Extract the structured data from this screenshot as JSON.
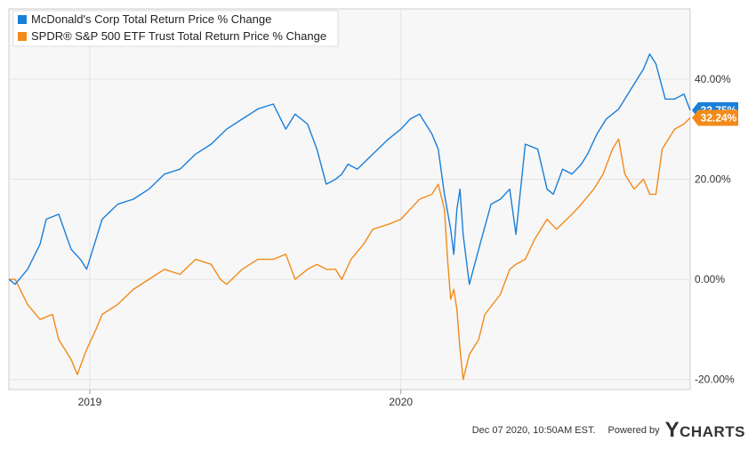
{
  "chart_data": {
    "type": "line",
    "ylim": [
      -22,
      54
    ],
    "x_ticks": [
      {
        "label": "2019",
        "x": 2019.0
      },
      {
        "label": "2020",
        "x": 2020.0
      }
    ],
    "y_ticks": [
      {
        "label": "40.00%",
        "value": 40
      },
      {
        "label": "20.00%",
        "value": 20
      },
      {
        "label": "0.00%",
        "value": 0
      },
      {
        "label": "-20.00%",
        "value": -20
      }
    ],
    "grid": true,
    "legend_placement": "top-left",
    "series": [
      {
        "name": "McDonald's Corp Total Return Price % Change",
        "color": "#1a7fd9",
        "end_label": "33.75%",
        "x": [
          2018.74,
          2018.76,
          2018.8,
          2018.84,
          2018.86,
          2018.9,
          2018.94,
          2018.97,
          2018.99,
          2019.04,
          2019.09,
          2019.14,
          2019.19,
          2019.24,
          2019.29,
          2019.34,
          2019.39,
          2019.44,
          2019.49,
          2019.54,
          2019.59,
          2019.63,
          2019.66,
          2019.7,
          2019.73,
          2019.76,
          2019.79,
          2019.81,
          2019.83,
          2019.86,
          2019.91,
          2019.96,
          2020.0,
          2020.03,
          2020.06,
          2020.1,
          2020.12,
          2020.14,
          2020.16,
          2020.17,
          2020.18,
          2020.19,
          2020.2,
          2020.22,
          2020.25,
          2020.29,
          2020.32,
          2020.35,
          2020.37,
          2020.4,
          2020.44,
          2020.47,
          2020.49,
          2020.52,
          2020.55,
          2020.58,
          2020.6,
          2020.63,
          2020.66,
          2020.7,
          2020.74,
          2020.78,
          2020.8,
          2020.82,
          2020.85,
          2020.88,
          2020.91,
          2020.93
        ],
        "values": [
          0,
          -1,
          2,
          7,
          12,
          13,
          6,
          4,
          2,
          12,
          15,
          16,
          18,
          21,
          22,
          25,
          27,
          30,
          32,
          34,
          35,
          30,
          33,
          31,
          26,
          19,
          20,
          21,
          23,
          22,
          25,
          28,
          30,
          32,
          33,
          29,
          26,
          17,
          10,
          5,
          14,
          18,
          9,
          -1,
          6,
          15,
          16,
          18,
          9,
          27,
          26,
          18,
          17,
          22,
          21,
          23,
          25,
          29,
          32,
          34,
          38,
          42,
          45,
          43,
          36,
          36,
          37,
          33.75
        ]
      },
      {
        "name": "SPDR® S&P 500 ETF Trust Total Return Price % Change",
        "color": "#f28a1a",
        "end_label": "32.24%",
        "x": [
          2018.74,
          2018.76,
          2018.8,
          2018.84,
          2018.88,
          2018.9,
          2018.94,
          2018.96,
          2018.99,
          2019.02,
          2019.04,
          2019.09,
          2019.14,
          2019.19,
          2019.24,
          2019.29,
          2019.34,
          2019.39,
          2019.42,
          2019.44,
          2019.49,
          2019.54,
          2019.59,
          2019.63,
          2019.66,
          2019.7,
          2019.73,
          2019.76,
          2019.79,
          2019.81,
          2019.84,
          2019.88,
          2019.91,
          2019.96,
          2020.0,
          2020.03,
          2020.06,
          2020.1,
          2020.12,
          2020.14,
          2020.15,
          2020.16,
          2020.17,
          2020.18,
          2020.19,
          2020.2,
          2020.22,
          2020.25,
          2020.27,
          2020.32,
          2020.35,
          2020.37,
          2020.4,
          2020.43,
          2020.47,
          2020.5,
          2020.55,
          2020.58,
          2020.62,
          2020.65,
          2020.68,
          2020.7,
          2020.72,
          2020.75,
          2020.78,
          2020.8,
          2020.82,
          2020.84,
          2020.86,
          2020.88,
          2020.91,
          2020.93
        ],
        "values": [
          0,
          0,
          -5,
          -8,
          -7,
          -12,
          -16,
          -19,
          -14,
          -10,
          -7,
          -5,
          -2,
          0,
          2,
          1,
          4,
          3,
          0,
          -1,
          2,
          4,
          4,
          5,
          0,
          2,
          3,
          2,
          2,
          0,
          4,
          7,
          10,
          11,
          12,
          14,
          16,
          17,
          19,
          14,
          4,
          -4,
          -2,
          -6,
          -14,
          -20,
          -15,
          -12,
          -7,
          -3,
          2,
          3,
          4,
          8,
          12,
          10,
          13,
          15,
          18,
          21,
          26,
          28,
          21,
          18,
          20,
          17,
          17,
          26,
          28,
          30,
          31,
          32.24
        ]
      }
    ]
  },
  "footer": {
    "timestamp": "Dec 07 2020, 10:50AM EST.",
    "powered_by": "Powered by",
    "brand_initial": "Y",
    "brand_rest": "CHARTS"
  }
}
